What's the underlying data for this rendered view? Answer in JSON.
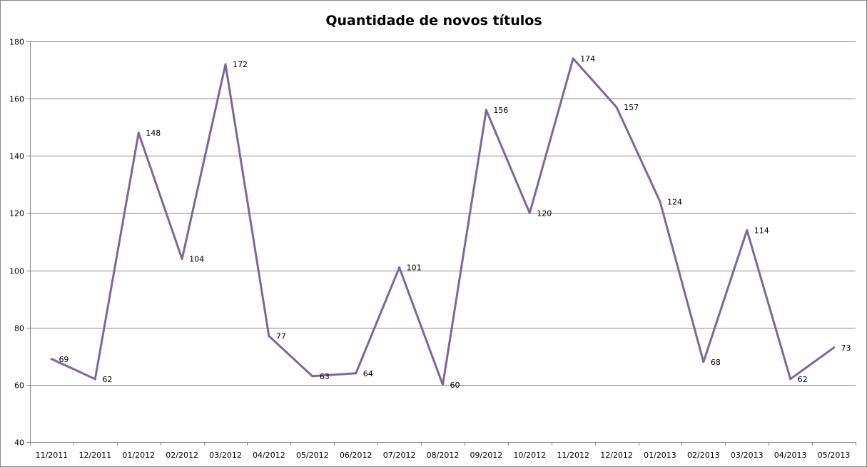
{
  "chart_data": {
    "type": "line",
    "title": "Quantidade de novos títulos",
    "xlabel": "",
    "ylabel": "",
    "categories": [
      "11/2011",
      "12/2011",
      "01/2012",
      "02/2012",
      "03/2012",
      "04/2012",
      "05/2012",
      "06/2012",
      "07/2012",
      "08/2012",
      "09/2012",
      "10/2012",
      "11/2012",
      "12/2012",
      "01/2013",
      "02/2013",
      "03/2013",
      "04/2013",
      "05/2013"
    ],
    "series": [
      {
        "values": [
          69,
          62,
          148,
          104,
          172,
          77,
          63,
          64,
          101,
          60,
          156,
          120,
          174,
          157,
          124,
          68,
          114,
          62,
          73
        ],
        "color": "#8064a2"
      }
    ],
    "ylim": [
      40,
      180
    ],
    "yticks": [
      40,
      60,
      80,
      100,
      120,
      140,
      160,
      180
    ],
    "grid": true,
    "legend": "none",
    "data_labels": true
  }
}
